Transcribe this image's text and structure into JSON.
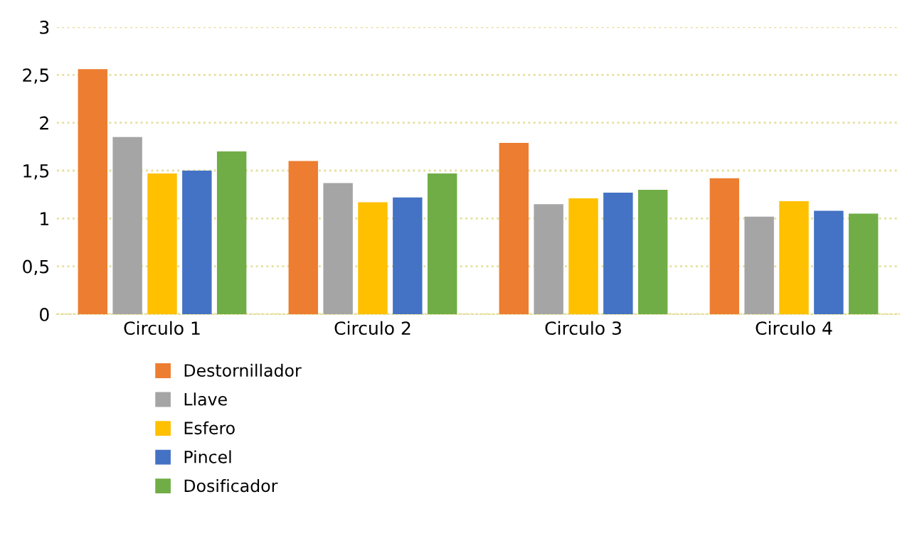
{
  "chart_data": {
    "type": "bar",
    "categories": [
      "Circulo 1",
      "Circulo 2",
      "Circulo 3",
      "Circulo 4"
    ],
    "series": [
      {
        "name": "Destornillador",
        "color": "#ed7d31",
        "values": [
          2.56,
          1.6,
          1.79,
          1.42
        ]
      },
      {
        "name": "Llave",
        "color": "#a5a5a5",
        "values": [
          1.85,
          1.37,
          1.15,
          1.02
        ]
      },
      {
        "name": "Esfero",
        "color": "#ffc000",
        "values": [
          1.47,
          1.17,
          1.21,
          1.18
        ]
      },
      {
        "name": "Pincel",
        "color": "#4472c4",
        "values": [
          1.5,
          1.22,
          1.27,
          1.08
        ]
      },
      {
        "name": "Dosificador",
        "color": "#70ad47",
        "values": [
          1.7,
          1.47,
          1.3,
          1.05
        ]
      }
    ],
    "ylim": [
      0,
      3
    ],
    "yticks": [
      0,
      {
        "value": 0.5,
        "label": "0,5"
      },
      1,
      {
        "value": 1.5,
        "label": "1,5"
      },
      2,
      {
        "value": 2.5,
        "label": "2,5"
      },
      3
    ],
    "grid": "y",
    "legend": "bottom"
  }
}
